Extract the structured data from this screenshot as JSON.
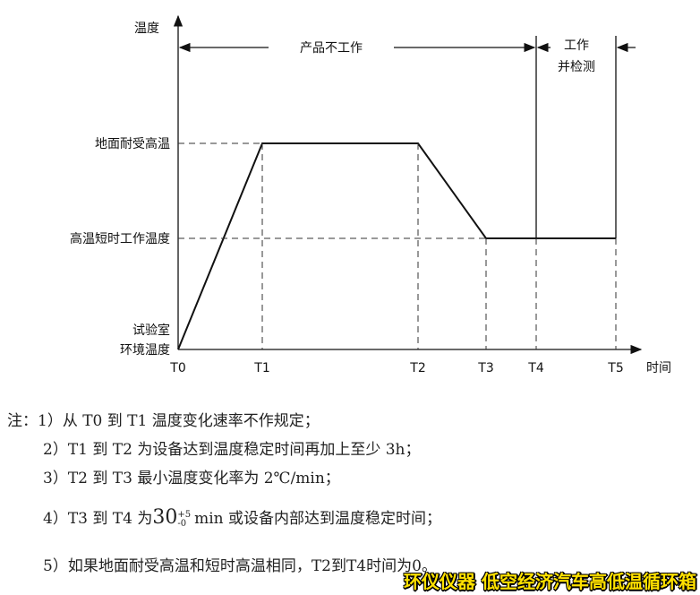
{
  "diagram": {
    "y_axis_label": "温度",
    "x_axis_label": "时间",
    "y_levels": {
      "ground": "地面耐受高温",
      "short": "高温短时工作温度",
      "ambient_line1": "试验室",
      "ambient_line2": "环境温度"
    },
    "time_points": [
      "T0",
      "T1",
      "T2",
      "T3",
      "T4",
      "T5"
    ],
    "phase_not_working": "产品不工作",
    "phase_working_line1": "工作",
    "phase_working_line2": "并检测"
  },
  "notes": {
    "n1": "注：1）从 T0 到 T1 温度变化速率不作规定；",
    "n2": "2）T1 到 T2 为设备达到温度稳定时间再加上至少 3h；",
    "n3": "3）T2 到 T3 最小温度变化率为 2℃/min；",
    "n4_pre": "4）T3 到 T4 为",
    "n4_num": "30",
    "n4_sup": "+5",
    "n4_sub": "-0",
    "n4_post": "min 或设备内部达到温度稳定时间；",
    "n5": "5）如果地面耐受高温和短时高温相同，T2到T4时间为0。"
  },
  "watermark": "环仪仪器 低空经济汽车高低温循环箱"
}
